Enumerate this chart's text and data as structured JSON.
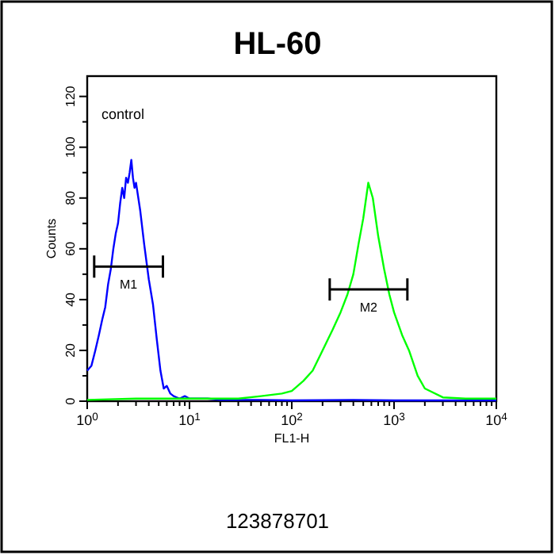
{
  "chart_data": {
    "type": "line",
    "title": "HL-60",
    "xlabel": "FL1-H",
    "ylabel": "Counts",
    "log": "x",
    "xlim": [
      1,
      10000
    ],
    "xticks": [
      {
        "value": 1,
        "label": "10$^{0}$"
      },
      {
        "value": 2,
        "label": null
      },
      {
        "value": 3,
        "label": null
      },
      {
        "value": 4,
        "label": null
      },
      {
        "value": 5,
        "label": null
      },
      {
        "value": 6,
        "label": null
      },
      {
        "value": 7,
        "label": null
      },
      {
        "value": 8,
        "label": null
      },
      {
        "value": 9,
        "label": null
      },
      {
        "value": 10,
        "label": "10$^{1}$"
      },
      {
        "value": 20,
        "label": null
      },
      {
        "value": 30,
        "label": null
      },
      {
        "value": 40,
        "label": null
      },
      {
        "value": 50,
        "label": null
      },
      {
        "value": 60,
        "label": null
      },
      {
        "value": 70,
        "label": null
      },
      {
        "value": 80,
        "label": null
      },
      {
        "value": 90,
        "label": null
      },
      {
        "value": 100,
        "label": "10$^{2}$"
      },
      {
        "value": 200,
        "label": null
      },
      {
        "value": 300,
        "label": null
      },
      {
        "value": 400,
        "label": null
      },
      {
        "value": 500,
        "label": null
      },
      {
        "value": 600,
        "label": null
      },
      {
        "value": 700,
        "label": null
      },
      {
        "value": 800,
        "label": null
      },
      {
        "value": 900,
        "label": null
      },
      {
        "value": 1000,
        "label": "10$^{3}$"
      },
      {
        "value": 2000,
        "label": null
      },
      {
        "value": 3000,
        "label": null
      },
      {
        "value": 4000,
        "label": null
      },
      {
        "value": 5000,
        "label": null
      },
      {
        "value": 6000,
        "label": null
      },
      {
        "value": 7000,
        "label": null
      },
      {
        "value": 8000,
        "label": null
      },
      {
        "value": 9000,
        "label": null
      },
      {
        "value": 10000,
        "label": "10$^{4}$"
      }
    ],
    "ylim": [
      0,
      128
    ],
    "yticks": [
      0,
      {
        "value": 10,
        "label": null
      },
      20,
      {
        "value": 30,
        "label": null
      },
      40,
      {
        "value": 50,
        "label": null
      },
      60,
      {
        "value": 70,
        "label": null
      },
      80,
      {
        "value": 90,
        "label": null
      },
      100,
      {
        "value": 110,
        "label": null
      },
      120
    ],
    "grid": false,
    "marker": "none",
    "line_style": "solid",
    "series": [
      {
        "color": "#0000ff",
        "x": [
          1,
          1.1,
          1.2,
          1.3,
          1.4,
          1.5,
          1.6,
          1.7,
          1.8,
          1.9,
          2,
          2.1,
          2.2,
          2.3,
          2.4,
          2.5,
          2.6,
          2.7,
          2.8,
          2.9,
          3,
          3.3,
          3.6,
          4,
          4.4,
          4.8,
          5.2,
          5.6,
          6,
          6.5,
          7,
          8,
          9,
          10,
          15,
          20,
          50,
          100,
          400,
          1000,
          10000
        ],
        "values": [
          12,
          14,
          20,
          26,
          32,
          37,
          46,
          52,
          60,
          66,
          70,
          78,
          84,
          80,
          88,
          86,
          90,
          95,
          88,
          84,
          86,
          75,
          62,
          48,
          38,
          24,
          12,
          5,
          6,
          3,
          2,
          1,
          2,
          1,
          1,
          0.5,
          0.5,
          0.3,
          0.5,
          0.3,
          0.3
        ]
      },
      {
        "color": "#00ff00",
        "x": [
          1,
          3,
          10,
          30,
          50,
          80,
          100,
          130,
          160,
          200,
          250,
          300,
          350,
          400,
          450,
          500,
          560,
          620,
          700,
          800,
          900,
          1000,
          1200,
          1400,
          1700,
          2000,
          3000,
          5000,
          10000
        ],
        "values": [
          0.5,
          1,
          1,
          1,
          2,
          3,
          4,
          8,
          12,
          20,
          28,
          35,
          42,
          50,
          62,
          72,
          86,
          80,
          65,
          52,
          42,
          35,
          26,
          20,
          10,
          5,
          1.5,
          1,
          1
        ]
      },
      {
        "color": "#000000",
        "x": [
          1.17,
          5.5
        ],
        "values": [
          53,
          53
        ]
      },
      {
        "color": "#000000",
        "x": [
          235,
          1350
        ],
        "values": [
          44,
          44
        ]
      }
    ],
    "annotations": [
      "control",
      "M1",
      "M2",
      "123878701"
    ]
  }
}
